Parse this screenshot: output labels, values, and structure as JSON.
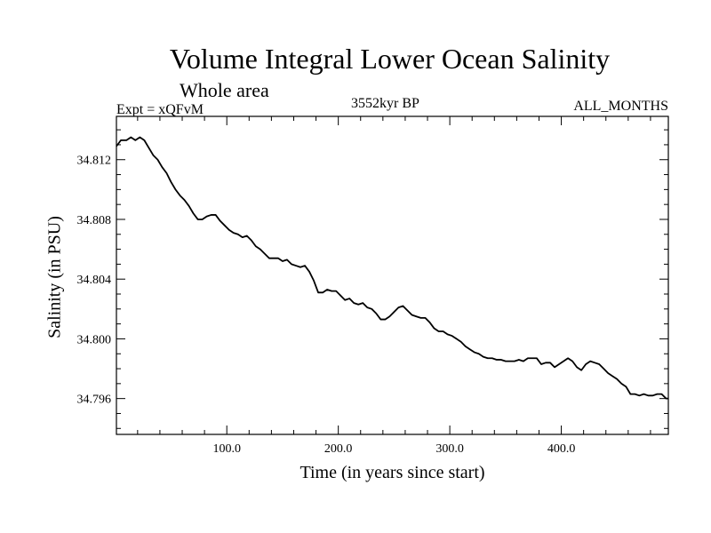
{
  "chart_data": {
    "type": "line",
    "title": "Volume Integral Lower Ocean Salinity",
    "subtitle": "Whole area",
    "experiment_label": "Expt = xQFvM",
    "period_label": "3552kyr BP",
    "months_label": "ALL_MONTHS",
    "xlabel": "Time (in years since start)",
    "ylabel": "Salinity (in PSU)",
    "xlim": [
      1,
      496
    ],
    "ylim": [
      34.7936,
      34.8149
    ],
    "xticks": [
      100,
      200,
      300,
      400
    ],
    "xtick_labels": [
      "100.0",
      "200.0",
      "300.0",
      "400.0"
    ],
    "yticks": [
      34.796,
      34.8,
      34.804,
      34.808,
      34.812
    ],
    "ytick_labels": [
      "34.796",
      "34.800",
      "34.804",
      "34.808",
      "34.812"
    ],
    "series": [
      {
        "name": "Salinity",
        "color": "#000000",
        "x": [
          1,
          5,
          10,
          14,
          18,
          22,
          26,
          30,
          34,
          38,
          42,
          46,
          50,
          54,
          58,
          62,
          66,
          70,
          74,
          78,
          82,
          86,
          90,
          94,
          98,
          102,
          106,
          110,
          114,
          118,
          122,
          126,
          130,
          134,
          138,
          142,
          146,
          150,
          154,
          158,
          162,
          166,
          170,
          174,
          178,
          182,
          186,
          190,
          194,
          198,
          202,
          206,
          210,
          214,
          218,
          222,
          226,
          230,
          234,
          238,
          242,
          246,
          250,
          254,
          258,
          262,
          266,
          270,
          274,
          278,
          282,
          286,
          290,
          294,
          298,
          302,
          306,
          310,
          314,
          318,
          322,
          326,
          330,
          334,
          338,
          342,
          346,
          350,
          354,
          358,
          362,
          366,
          370,
          374,
          378,
          382,
          386,
          390,
          394,
          398,
          402,
          406,
          410,
          414,
          418,
          422,
          426,
          430,
          434,
          438,
          442,
          446,
          450,
          454,
          458,
          462,
          466,
          470,
          474,
          478,
          482,
          486,
          490,
          494,
          496
        ],
        "values": [
          34.8129,
          34.8133,
          34.8133,
          34.8135,
          34.8133,
          34.8135,
          34.8133,
          34.8128,
          34.8123,
          34.812,
          34.8115,
          34.8111,
          34.8105,
          34.81,
          34.8096,
          34.8093,
          34.8089,
          34.8084,
          34.808,
          34.808,
          34.8082,
          34.8083,
          34.8083,
          34.8079,
          34.8076,
          34.8073,
          34.8071,
          34.807,
          34.8068,
          34.8069,
          34.8066,
          34.8062,
          34.806,
          34.8057,
          34.8054,
          34.8054,
          34.8054,
          34.8052,
          34.8053,
          34.805,
          34.8049,
          34.8048,
          34.8049,
          34.8045,
          34.8039,
          34.8031,
          34.8031,
          34.8033,
          34.8032,
          34.8032,
          34.8029,
          34.8026,
          34.8027,
          34.8024,
          34.8023,
          34.8024,
          34.8021,
          34.802,
          34.8017,
          34.8013,
          34.8013,
          34.8015,
          34.8018,
          34.8021,
          34.8022,
          34.8019,
          34.8016,
          34.8015,
          34.8014,
          34.8014,
          34.8011,
          34.8007,
          34.8005,
          34.8005,
          34.8003,
          34.8002,
          34.8,
          34.7998,
          34.7995,
          34.7993,
          34.7991,
          34.799,
          34.7988,
          34.7987,
          34.7987,
          34.7986,
          34.7986,
          34.7985,
          34.7985,
          34.7985,
          34.7986,
          34.7985,
          34.7987,
          34.7987,
          34.7987,
          34.7983,
          34.7984,
          34.7984,
          34.7981,
          34.7983,
          34.7985,
          34.7987,
          34.7985,
          34.7981,
          34.7979,
          34.7983,
          34.7985,
          34.7984,
          34.7983,
          34.798,
          34.7977,
          34.7975,
          34.7973,
          34.797,
          34.7968,
          34.7963,
          34.7963,
          34.7962,
          34.7963,
          34.7962,
          34.7962,
          34.7963,
          34.7963,
          34.796,
          34.796
        ]
      }
    ]
  }
}
